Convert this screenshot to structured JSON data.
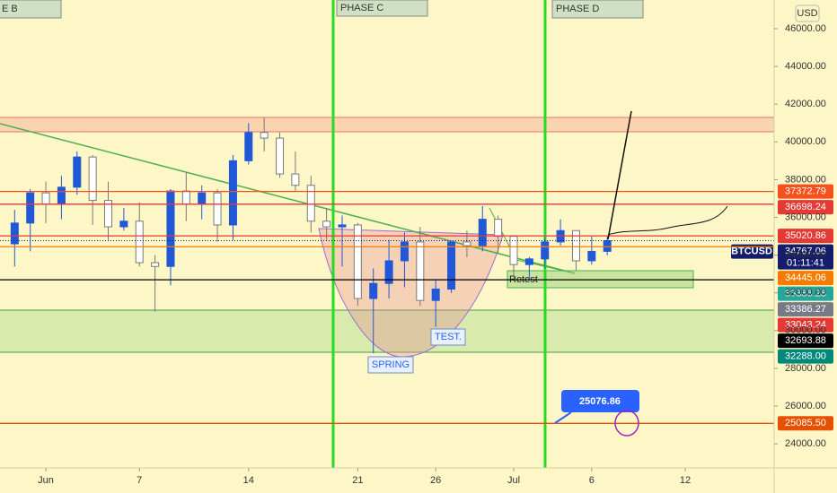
{
  "chart_data": {
    "type": "candlestick",
    "symbol": "BTCUSD",
    "currency": "USD",
    "countdown": "01:11:41",
    "up_color": "#2058d8",
    "down_color": "#ffffff",
    "x": [
      -2,
      -1,
      0,
      1,
      2,
      3,
      4,
      5,
      6,
      7,
      8,
      9,
      10,
      11,
      12,
      13,
      14,
      15,
      16,
      17,
      18,
      19,
      20,
      21,
      22,
      23,
      24,
      25,
      26,
      27,
      28,
      29,
      30,
      31,
      32,
      33,
      34,
      35,
      36
    ],
    "open": [
      34600,
      35700,
      37300,
      36700,
      37600,
      39200,
      36900,
      35500,
      35800,
      33600,
      33400,
      37400,
      36700,
      37300,
      35600,
      39000,
      40500,
      40200,
      38300,
      37700,
      35800,
      35500,
      35600,
      31700,
      32500,
      33700,
      34700,
      31600,
      32200,
      34700,
      34500,
      35900,
      35000,
      33500,
      33800,
      34700,
      35300,
      33700,
      34200
    ],
    "high": [
      36400,
      37500,
      37900,
      38200,
      39500,
      39300,
      37900,
      36500,
      36800,
      34000,
      37500,
      38400,
      37700,
      37500,
      39300,
      41000,
      41300,
      40500,
      39500,
      38200,
      36500,
      36100,
      35700,
      33300,
      34800,
      35200,
      35500,
      32700,
      34700,
      35300,
      36600,
      36100,
      35000,
      33900,
      34900,
      35900,
      35300,
      35000,
      35000
    ],
    "low": [
      33400,
      34200,
      35700,
      35900,
      37200,
      35600,
      34800,
      35300,
      33400,
      31000,
      32400,
      35800,
      35900,
      34700,
      34800,
      38800,
      39500,
      38100,
      37400,
      35200,
      34800,
      33400,
      31300,
      28800,
      31700,
      32300,
      31300,
      30200,
      32000,
      33900,
      34200,
      34100,
      32700,
      32700,
      33300,
      34500,
      33200,
      33500,
      34000
    ],
    "close": [
      35700,
      37300,
      36700,
      37600,
      39200,
      36900,
      35500,
      35800,
      33600,
      33400,
      37400,
      36700,
      37300,
      35600,
      39000,
      40500,
      40200,
      38300,
      37700,
      35800,
      35500,
      35600,
      31700,
      32500,
      33700,
      34700,
      31600,
      32200,
      34700,
      34500,
      35900,
      35000,
      33500,
      33800,
      34700,
      35300,
      33700,
      34200,
      34767.06
    ],
    "xlim": [
      -2.94,
      46.7
    ],
    "xticks": [
      {
        "value": 0,
        "label": "Jun"
      },
      {
        "value": 6,
        "label": "7"
      },
      {
        "value": 13,
        "label": "14"
      },
      {
        "value": 20,
        "label": "21"
      },
      {
        "value": 25,
        "label": "26"
      },
      {
        "value": 30,
        "label": "Jul"
      },
      {
        "value": 35,
        "label": "6"
      },
      {
        "value": 41,
        "label": "12"
      }
    ],
    "ylim": [
      22725,
      47520
    ],
    "yticks": [
      {
        "value": 24000,
        "label": "24000.00"
      },
      {
        "value": 26000,
        "label": "26000.00"
      },
      {
        "value": 28000,
        "label": "28000.00"
      },
      {
        "value": 30000,
        "label": "30000.00"
      },
      {
        "value": 32000,
        "label": "32000.00"
      },
      {
        "value": 34000,
        "label": "34000.00"
      },
      {
        "value": 36000,
        "label": "36000.00"
      },
      {
        "value": 38000,
        "label": "38000.00"
      },
      {
        "value": 40000,
        "label": "40000.00"
      },
      {
        "value": 42000,
        "label": "42000.00"
      },
      {
        "value": 44000,
        "label": "44000.00"
      },
      {
        "value": 46000,
        "label": "46000.00"
      }
    ],
    "levels": [
      {
        "value": 37372.79,
        "color": "#f4511e",
        "line": true
      },
      {
        "value": 36698.24,
        "color": "#e53935",
        "line": true
      },
      {
        "value": 35020.86,
        "color": "#e53935",
        "line": true
      },
      {
        "value": 34767.06,
        "color": "#131d6b",
        "line": false
      },
      {
        "value": 34445.06,
        "color": "#f57c00",
        "line": true
      },
      {
        "value": 33386.28,
        "color": "#26a69a",
        "line": false
      },
      {
        "value": 33386.27,
        "color": "#787b86",
        "line": false
      },
      {
        "value": 33043.24,
        "color": "#e53935",
        "line": false
      },
      {
        "value": 32693.88,
        "color": "#000000",
        "line": true
      },
      {
        "value": {
          "value": 32288,
          "label": "32288.00"
        },
        "color": "#00897b",
        "line": false
      },
      {
        "value": {
          "value": 25085.5,
          "label": "25085.50"
        },
        "color": "#e65100",
        "line": true
      }
    ],
    "annotations": {
      "phase_b": "E B",
      "phase_c": "PHASE C",
      "phase_d": "PHASE D",
      "spring": "SPRING",
      "test": "TEST.",
      "retest": "Retest",
      "callout": 25076.86
    }
  }
}
